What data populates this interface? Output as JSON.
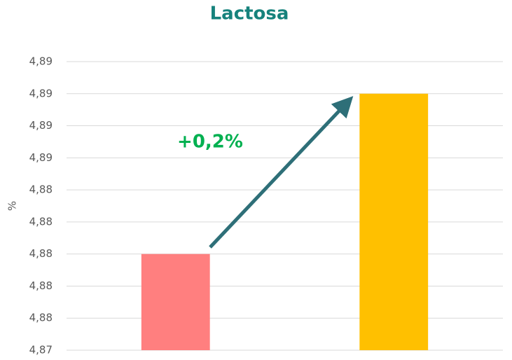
{
  "chart_data": {
    "type": "bar",
    "title": "Lactosa",
    "y_label": "%",
    "categories": [
      null,
      null
    ],
    "values": [
      4.88,
      4.89
    ],
    "colors": [
      "#ff7f7f",
      "#ffc000"
    ],
    "ylim": [
      4.874,
      4.892
    ],
    "yticks": [
      {
        "value": 4.874,
        "label": "4,87"
      },
      {
        "value": 4.876,
        "label": "4,88"
      },
      {
        "value": 4.878,
        "label": "4,88"
      },
      {
        "value": 4.88,
        "label": "4,88"
      },
      {
        "value": 4.882,
        "label": "4,88"
      },
      {
        "value": 4.884,
        "label": "4,88"
      },
      {
        "value": 4.886,
        "label": "4,89"
      },
      {
        "value": 4.888,
        "label": "4,89"
      },
      {
        "value": 4.89,
        "label": "4,89"
      },
      {
        "value": 4.892,
        "label": "4,89"
      }
    ],
    "grid": true,
    "annotation": "+0,2%"
  }
}
